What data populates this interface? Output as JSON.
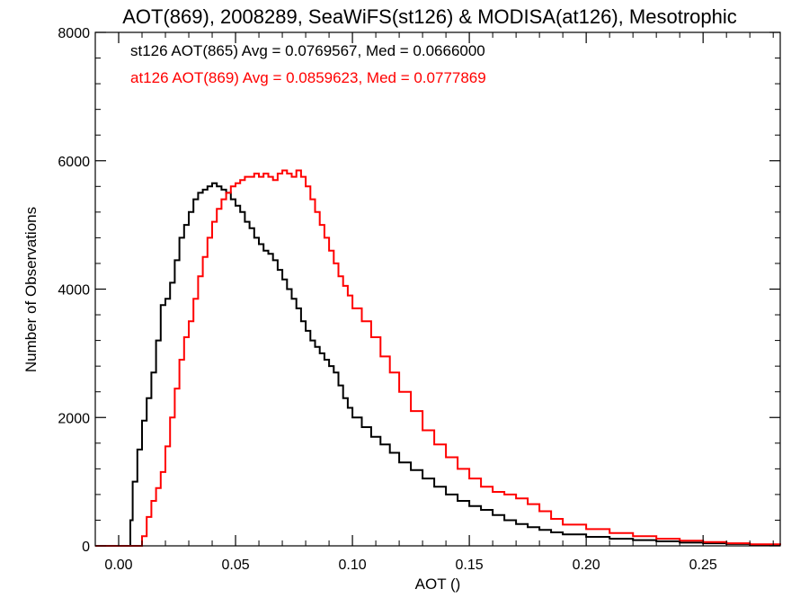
{
  "chart_data": {
    "type": "line",
    "step": true,
    "title": "AOT(869), 2008289, SeaWiFS(st126) & MODISA(at126), Mesotrophic",
    "xlabel": "AOT ()",
    "ylabel": "Number of Observations",
    "xlim": [
      -0.01,
      0.283
    ],
    "ylim": [
      0,
      8000
    ],
    "xticks": [
      0.0,
      0.05,
      0.1,
      0.15,
      0.2,
      0.25
    ],
    "xtick_labels": [
      "0.00",
      "0.05",
      "0.10",
      "0.15",
      "0.20",
      "0.25"
    ],
    "yticks": [
      0,
      2000,
      4000,
      6000,
      8000
    ],
    "ytick_labels": [
      "0",
      "2000",
      "4000",
      "6000",
      "8000"
    ],
    "grid": false,
    "annotations": [
      {
        "text": "st126 AOT(865) Avg = 0.0769567, Med = 0.0666000",
        "color": "#000000"
      },
      {
        "text": "at126 AOT(869) Avg = 0.0859623, Med = 0.0777869",
        "color": "#ff0000"
      }
    ],
    "series": [
      {
        "color": "#000000",
        "x": [
          -0.01,
          0.004,
          0.005,
          0.006,
          0.008,
          0.01,
          0.012,
          0.014,
          0.016,
          0.018,
          0.02,
          0.022,
          0.024,
          0.026,
          0.028,
          0.03,
          0.032,
          0.034,
          0.036,
          0.038,
          0.04,
          0.042,
          0.044,
          0.046,
          0.048,
          0.05,
          0.052,
          0.054,
          0.056,
          0.058,
          0.06,
          0.062,
          0.064,
          0.066,
          0.068,
          0.07,
          0.072,
          0.074,
          0.076,
          0.078,
          0.08,
          0.082,
          0.084,
          0.086,
          0.088,
          0.09,
          0.092,
          0.094,
          0.096,
          0.098,
          0.1,
          0.104,
          0.108,
          0.112,
          0.116,
          0.12,
          0.125,
          0.13,
          0.135,
          0.14,
          0.145,
          0.15,
          0.155,
          0.16,
          0.165,
          0.17,
          0.175,
          0.18,
          0.185,
          0.19,
          0.2,
          0.21,
          0.22,
          0.23,
          0.24,
          0.25,
          0.26,
          0.27,
          0.283
        ],
        "values": [
          0,
          0,
          400,
          1000,
          1500,
          1950,
          2300,
          2700,
          3200,
          3750,
          3850,
          4100,
          4450,
          4800,
          5000,
          5200,
          5400,
          5500,
          5550,
          5600,
          5650,
          5600,
          5550,
          5500,
          5400,
          5300,
          5200,
          5050,
          4950,
          4800,
          4700,
          4600,
          4550,
          4450,
          4300,
          4150,
          4000,
          3850,
          3700,
          3500,
          3350,
          3200,
          3100,
          3000,
          2900,
          2800,
          2700,
          2500,
          2300,
          2150,
          2000,
          1850,
          1700,
          1580,
          1450,
          1300,
          1180,
          1050,
          920,
          800,
          700,
          620,
          560,
          480,
          400,
          340,
          290,
          250,
          210,
          180,
          140,
          110,
          90,
          70,
          50,
          40,
          30,
          20,
          10
        ]
      },
      {
        "color": "#ff0000",
        "x": [
          -0.01,
          0.01,
          0.012,
          0.014,
          0.016,
          0.018,
          0.02,
          0.022,
          0.024,
          0.026,
          0.028,
          0.03,
          0.032,
          0.034,
          0.036,
          0.038,
          0.04,
          0.042,
          0.044,
          0.046,
          0.048,
          0.05,
          0.052,
          0.054,
          0.056,
          0.058,
          0.06,
          0.062,
          0.064,
          0.066,
          0.068,
          0.07,
          0.072,
          0.074,
          0.076,
          0.078,
          0.08,
          0.082,
          0.084,
          0.086,
          0.088,
          0.09,
          0.092,
          0.094,
          0.096,
          0.098,
          0.1,
          0.104,
          0.108,
          0.112,
          0.116,
          0.12,
          0.125,
          0.13,
          0.135,
          0.14,
          0.145,
          0.15,
          0.155,
          0.16,
          0.165,
          0.17,
          0.175,
          0.18,
          0.185,
          0.19,
          0.2,
          0.21,
          0.22,
          0.23,
          0.24,
          0.25,
          0.26,
          0.27,
          0.283
        ],
        "values": [
          0,
          150,
          450,
          700,
          900,
          1150,
          1550,
          2000,
          2450,
          2900,
          3250,
          3500,
          3850,
          4200,
          4500,
          4800,
          5050,
          5250,
          5400,
          5500,
          5600,
          5650,
          5700,
          5750,
          5750,
          5800,
          5750,
          5800,
          5750,
          5700,
          5800,
          5850,
          5800,
          5750,
          5850,
          5750,
          5600,
          5400,
          5200,
          5000,
          4800,
          4600,
          4400,
          4200,
          4050,
          3900,
          3700,
          3500,
          3250,
          2950,
          2700,
          2400,
          2100,
          1800,
          1580,
          1380,
          1200,
          1050,
          920,
          840,
          800,
          740,
          650,
          540,
          420,
          330,
          260,
          200,
          150,
          110,
          80,
          60,
          40,
          25,
          10
        ]
      }
    ]
  }
}
